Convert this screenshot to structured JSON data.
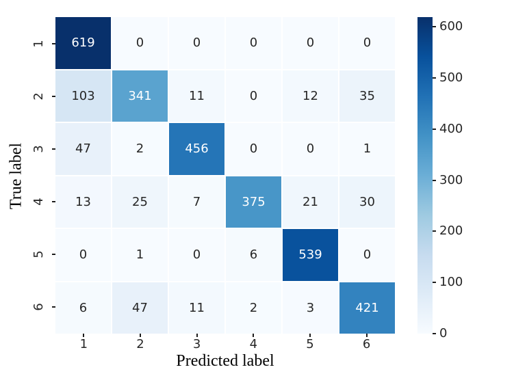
{
  "chart_data": {
    "type": "heatmap",
    "title": "",
    "xlabel": "Predicted label",
    "ylabel": "True label",
    "x_tick_labels": [
      "1",
      "2",
      "3",
      "4",
      "5",
      "6"
    ],
    "y_tick_labels": [
      "1",
      "2",
      "3",
      "4",
      "5",
      "6"
    ],
    "matrix": [
      [
        619,
        0,
        0,
        0,
        0,
        0
      ],
      [
        103,
        341,
        11,
        0,
        12,
        35
      ],
      [
        47,
        2,
        456,
        0,
        0,
        1
      ],
      [
        13,
        25,
        7,
        375,
        21,
        30
      ],
      [
        0,
        1,
        0,
        6,
        539,
        0
      ],
      [
        6,
        47,
        11,
        2,
        3,
        421
      ]
    ],
    "vmin": 0,
    "vmax": 619,
    "grid": false,
    "legend_position": "right-colorbar",
    "colorbar": {
      "tick_values": [
        0,
        100,
        200,
        300,
        400,
        500,
        600
      ],
      "colormap_name": "Blues",
      "gradient": [
        [
          0.0,
          "#f7fbff"
        ],
        [
          0.125,
          "#deebf7"
        ],
        [
          0.25,
          "#c6dbef"
        ],
        [
          0.375,
          "#9ecae1"
        ],
        [
          0.5,
          "#6baed6"
        ],
        [
          0.625,
          "#4292c6"
        ],
        [
          0.75,
          "#2171b5"
        ],
        [
          0.875,
          "#08519c"
        ],
        [
          1.0,
          "#08306b"
        ]
      ]
    },
    "annotation_text_colors": {
      "dark_cells": "#ffffff",
      "light_cells": "#262626"
    }
  }
}
